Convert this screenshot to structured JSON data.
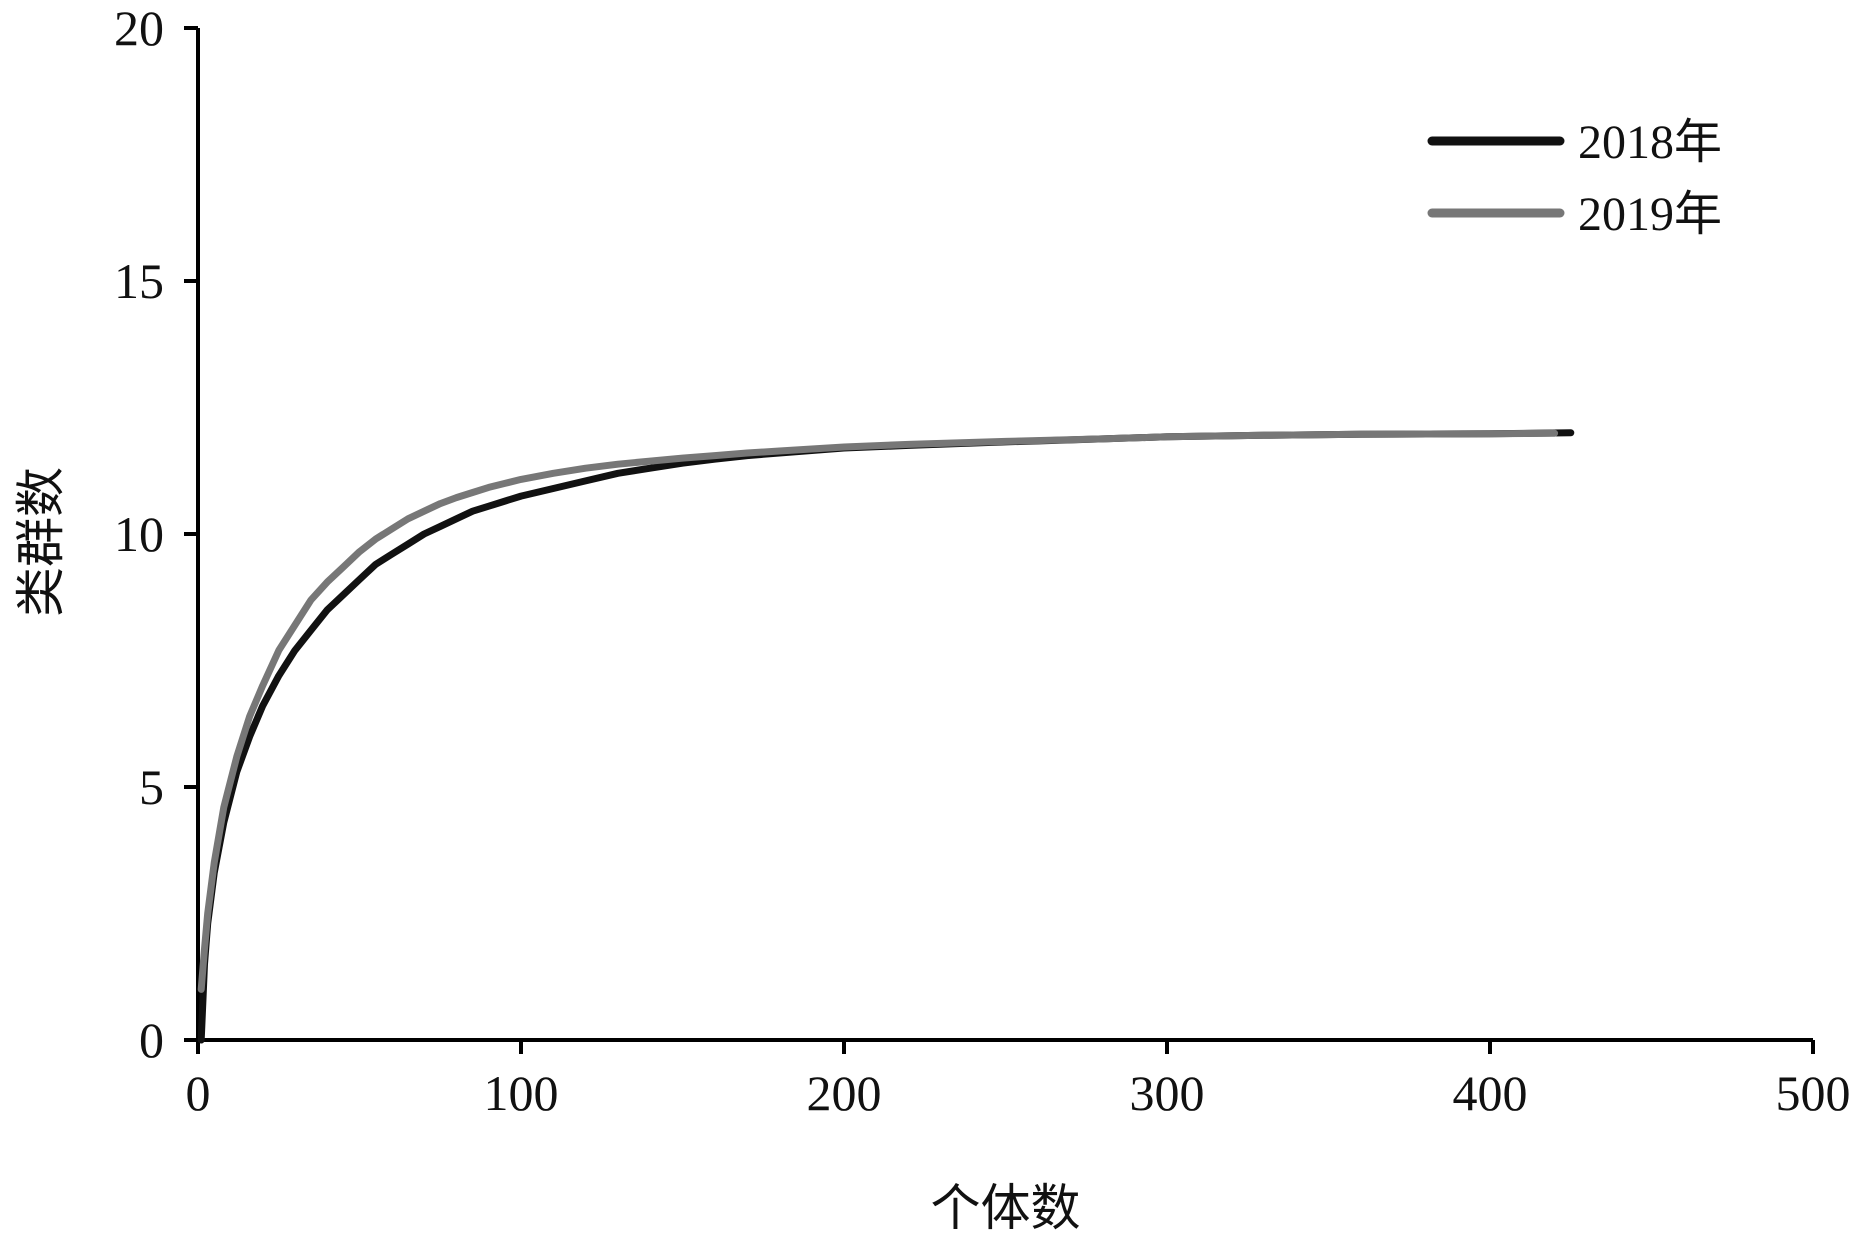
{
  "chart_data": {
    "type": "line",
    "xlabel": "个体数",
    "ylabel": "类群数",
    "xlim": [
      0,
      500
    ],
    "ylim": [
      0,
      20
    ],
    "xticks": [
      0,
      100,
      200,
      300,
      400,
      500
    ],
    "yticks": [
      0,
      5,
      10,
      15,
      20
    ],
    "grid": false,
    "legend_position": "top-right",
    "series": [
      {
        "name": "2018年",
        "color": "#111111",
        "x": [
          1,
          2,
          3,
          5,
          8,
          12,
          16,
          20,
          25,
          30,
          35,
          40,
          45,
          50,
          55,
          60,
          65,
          70,
          75,
          80,
          85,
          90,
          95,
          100,
          110,
          120,
          130,
          140,
          150,
          160,
          170,
          180,
          190,
          200,
          220,
          250,
          280,
          300,
          330,
          360,
          400,
          425
        ],
        "y": [
          0,
          1.5,
          2.3,
          3.3,
          4.3,
          5.3,
          6.0,
          6.6,
          7.2,
          7.7,
          8.1,
          8.5,
          8.8,
          9.1,
          9.4,
          9.6,
          9.8,
          10.0,
          10.15,
          10.3,
          10.45,
          10.55,
          10.65,
          10.75,
          10.9,
          11.05,
          11.2,
          11.3,
          11.4,
          11.48,
          11.55,
          11.6,
          11.65,
          11.7,
          11.75,
          11.82,
          11.88,
          11.92,
          11.95,
          11.97,
          11.98,
          12.0
        ]
      },
      {
        "name": "2019年",
        "color": "#777777",
        "x": [
          1,
          2,
          3,
          5,
          8,
          12,
          16,
          20,
          25,
          30,
          35,
          40,
          45,
          50,
          55,
          60,
          65,
          70,
          75,
          80,
          85,
          90,
          95,
          100,
          110,
          120,
          130,
          140,
          150,
          160,
          170,
          180,
          190,
          200,
          220,
          250,
          280,
          300,
          330,
          360,
          400,
          420
        ],
        "y": [
          1.0,
          1.8,
          2.5,
          3.5,
          4.6,
          5.6,
          6.4,
          7.0,
          7.7,
          8.2,
          8.7,
          9.05,
          9.35,
          9.65,
          9.9,
          10.1,
          10.3,
          10.45,
          10.6,
          10.72,
          10.82,
          10.92,
          11.0,
          11.08,
          11.2,
          11.3,
          11.38,
          11.44,
          11.5,
          11.55,
          11.6,
          11.64,
          11.68,
          11.72,
          11.77,
          11.83,
          11.88,
          11.92,
          11.95,
          11.97,
          11.98,
          11.99
        ]
      }
    ]
  }
}
